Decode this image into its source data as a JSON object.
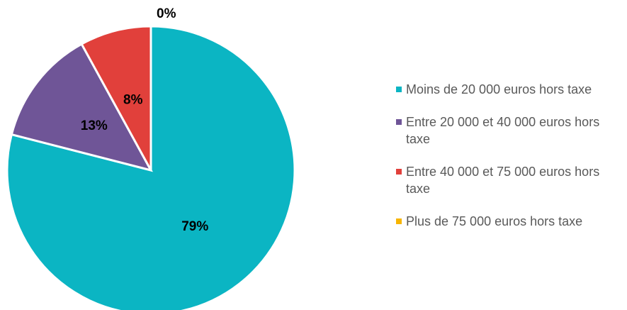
{
  "chart_data": {
    "type": "pie",
    "categories": [
      "Moins de 20 000 euros hors taxe",
      "Entre 20 000 et 40 000 euros hors taxe",
      "Entre 40 000 et 75 000 euros hors taxe",
      "Plus de 75 000 euros hors taxe"
    ],
    "values": [
      79,
      13,
      8,
      0
    ],
    "value_labels": [
      "79%",
      "13%",
      "8%",
      "0%"
    ],
    "colors": [
      "#0bb5c3",
      "#6f5597",
      "#e1403b",
      "#f7b500"
    ],
    "legend": "right"
  }
}
